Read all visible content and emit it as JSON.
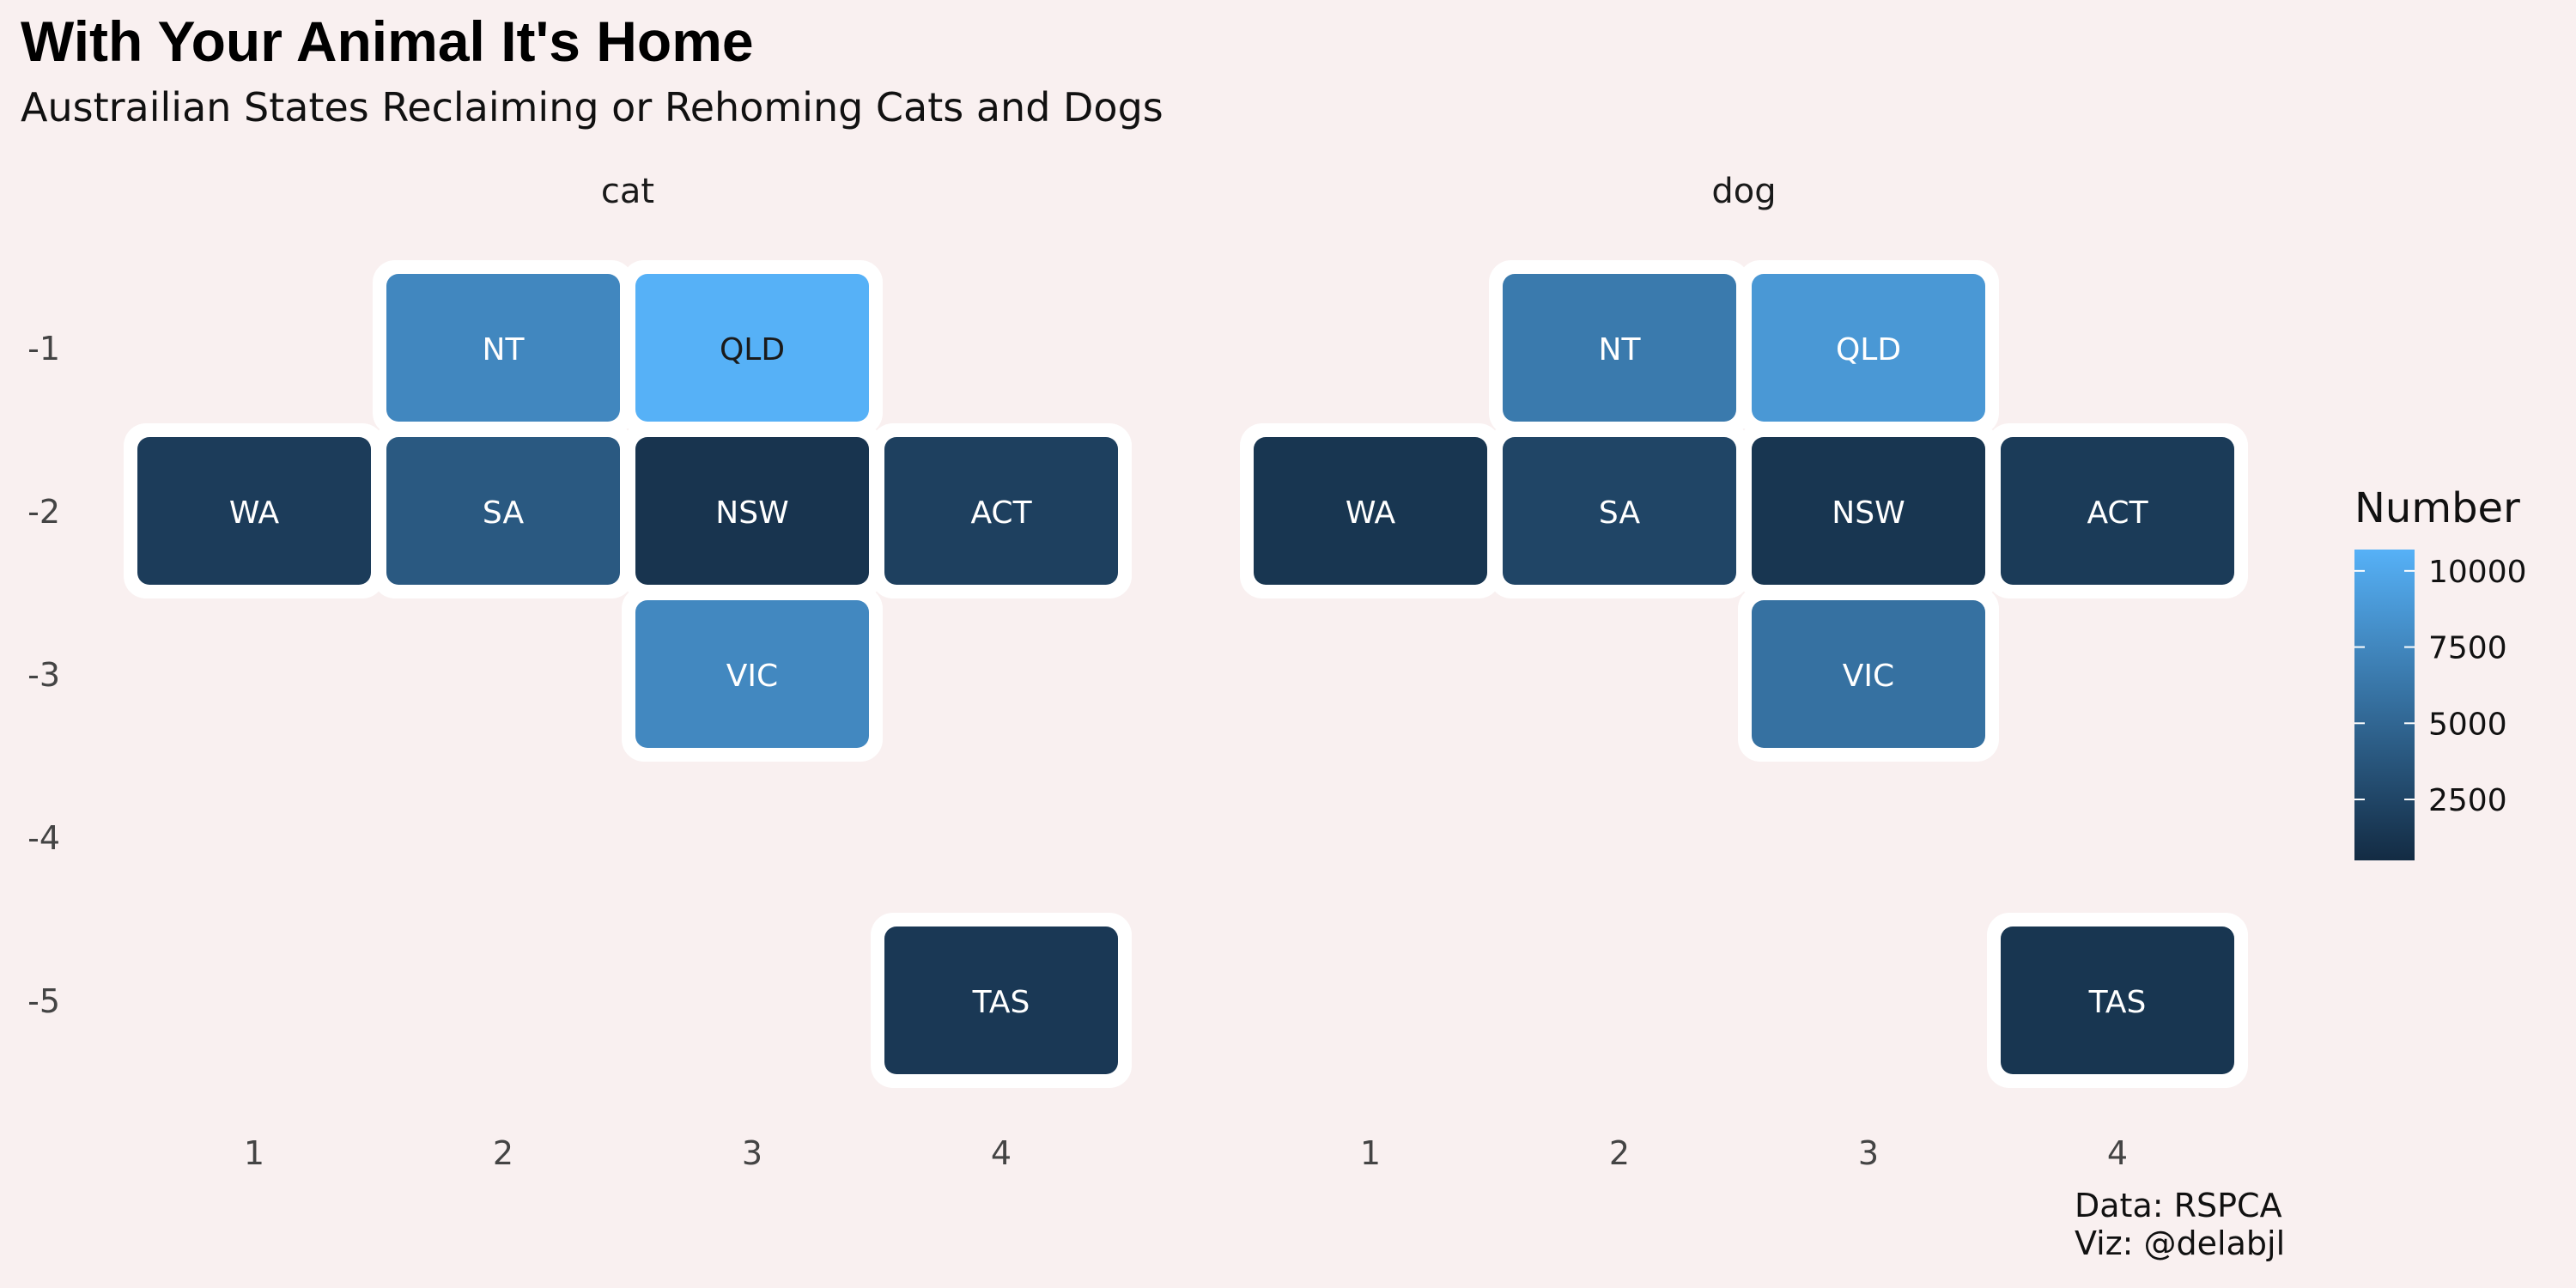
{
  "chart_data": {
    "type": "heatmap",
    "title": "With Your Animal It's Home",
    "subtitle": "Austrailian States Reclaiming or Rehoming Cats and Dogs",
    "caption": [
      "Data: RSPCA",
      "Viz: @delabjl"
    ],
    "facets": [
      "cat",
      "dog"
    ],
    "x_ticks": [
      "1",
      "2",
      "3",
      "4"
    ],
    "y_ticks": [
      "-1",
      "-2",
      "-3",
      "-4",
      "-5"
    ],
    "xlim": [
      0.5,
      4.5
    ],
    "ylim": [
      -5.5,
      -0.5
    ],
    "legend": {
      "title": "Number",
      "ticks": [
        "2500",
        "5000",
        "7500",
        "10000"
      ],
      "tick_values": [
        2500,
        5000,
        7500,
        10000
      ],
      "range": [
        500,
        10700
      ],
      "low_color": "#132b43",
      "high_color": "#56b1f7",
      "placement": "right"
    },
    "tile_border_color": "#ffffff",
    "label_dark_color": "#1a1a1a",
    "label_light_color": "#ffffff",
    "cells": [
      {
        "facet": "cat",
        "state": "NT",
        "x": 2,
        "y": -1,
        "value": 7500
      },
      {
        "facet": "cat",
        "state": "QLD",
        "x": 3,
        "y": -1,
        "value": 10700
      },
      {
        "facet": "cat",
        "state": "WA",
        "x": 1,
        "y": -2,
        "value": 1800
      },
      {
        "facet": "cat",
        "state": "SA",
        "x": 2,
        "y": -2,
        "value": 4000
      },
      {
        "facet": "cat",
        "state": "NSW",
        "x": 3,
        "y": -2,
        "value": 1200
      },
      {
        "facet": "cat",
        "state": "ACT",
        "x": 4,
        "y": -2,
        "value": 2100
      },
      {
        "facet": "cat",
        "state": "VIC",
        "x": 3,
        "y": -3,
        "value": 7600
      },
      {
        "facet": "cat",
        "state": "TAS",
        "x": 4,
        "y": -5,
        "value": 1500
      },
      {
        "facet": "dog",
        "state": "NT",
        "x": 2,
        "y": -1,
        "value": 6500
      },
      {
        "facet": "dog",
        "state": "QLD",
        "x": 3,
        "y": -1,
        "value": 8800
      },
      {
        "facet": "dog",
        "state": "WA",
        "x": 1,
        "y": -2,
        "value": 1300
      },
      {
        "facet": "dog",
        "state": "SA",
        "x": 2,
        "y": -2,
        "value": 2500
      },
      {
        "facet": "dog",
        "state": "NSW",
        "x": 3,
        "y": -2,
        "value": 1300
      },
      {
        "facet": "dog",
        "state": "ACT",
        "x": 4,
        "y": -2,
        "value": 1700
      },
      {
        "facet": "dog",
        "state": "VIC",
        "x": 3,
        "y": -3,
        "value": 5800
      },
      {
        "facet": "dog",
        "state": "TAS",
        "x": 4,
        "y": -5,
        "value": 1300
      }
    ]
  }
}
